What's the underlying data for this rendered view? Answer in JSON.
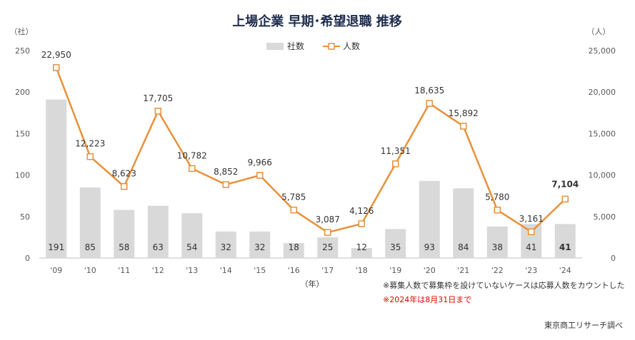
{
  "chart_data": {
    "type": "bar+line",
    "title": "上場企業 早期･希望退職 推移",
    "categories": [
      "'09",
      "'10",
      "'11",
      "'12",
      "'13",
      "'14",
      "'15",
      "'16",
      "'17",
      "'18",
      "'19",
      "'20",
      "'21",
      "'22",
      "'23",
      "'24"
    ],
    "series": [
      {
        "name": "社数",
        "type": "bar",
        "axis": "left",
        "values": [
          191,
          85,
          58,
          63,
          54,
          32,
          32,
          18,
          25,
          12,
          35,
          93,
          84,
          38,
          41,
          41
        ]
      },
      {
        "name": "人数",
        "type": "line",
        "axis": "right",
        "values": [
          22950,
          12223,
          8623,
          17705,
          10782,
          8852,
          9966,
          5785,
          3087,
          4126,
          11351,
          18635,
          15892,
          5780,
          3161,
          7104
        ]
      }
    ],
    "bar_labels": [
      "191",
      "85",
      "58",
      "63",
      "54",
      "32",
      "32",
      "18",
      "25",
      "12",
      "35",
      "93",
      "84",
      "38",
      "41",
      "41"
    ],
    "line_labels": [
      "22,950",
      "12,223",
      "8,623",
      "17,705",
      "10,782",
      "8,852",
      "9,966",
      "5,785",
      "3,087",
      "4,126",
      "11,351",
      "18,635",
      "15,892",
      "5,780",
      "3,161",
      "7,104"
    ],
    "y_left": {
      "label": "（社）",
      "ylim": [
        0,
        250
      ],
      "ticks": [
        "0",
        "50",
        "100",
        "150",
        "200",
        "250"
      ]
    },
    "y_right": {
      "label": "（人）",
      "ylim": [
        0,
        25000
      ],
      "ticks": [
        "0",
        "5,000",
        "10,000",
        "15,000",
        "20,000",
        "25,000"
      ]
    },
    "xlabel": "（年）",
    "legend_position": "top-center",
    "grid": false,
    "colors": {
      "bar": "#d9d9d9",
      "line": "#e8913a",
      "marker_fill": "#ffffff"
    }
  },
  "notes": {
    "note1": "※募集人数で募集枠を設けていないケースは応募人数をカウントした",
    "note2": "※2024年は8月31日まで",
    "source": "東京商工リサーチ調べ"
  }
}
